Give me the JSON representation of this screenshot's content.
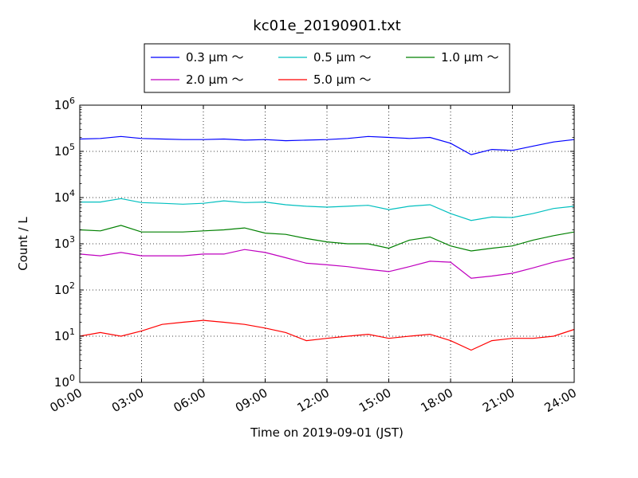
{
  "chart_data": {
    "type": "line",
    "title": "kc01e_20190901.txt",
    "xlabel": "Time on 2019-09-01 (JST)",
    "ylabel": "Count / L",
    "y_scale": "log",
    "ylim": [
      1,
      1000000
    ],
    "xlim": [
      "00:00",
      "24:00"
    ],
    "grid": true,
    "legend_placement": "top-center",
    "x_tick_labels": [
      "00:00",
      "03:00",
      "06:00",
      "09:00",
      "12:00",
      "15:00",
      "18:00",
      "21:00",
      "24:00"
    ],
    "y_tick_labels": [
      {
        "base": "10",
        "exp": "0"
      },
      {
        "base": "10",
        "exp": "1"
      },
      {
        "base": "10",
        "exp": "2"
      },
      {
        "base": "10",
        "exp": "3"
      },
      {
        "base": "10",
        "exp": "4"
      },
      {
        "base": "10",
        "exp": "5"
      },
      {
        "base": "10",
        "exp": "6"
      }
    ],
    "x_hours": [
      0,
      1,
      2,
      3,
      4,
      5,
      6,
      7,
      8,
      9,
      10,
      11,
      12,
      13,
      14,
      15,
      16,
      17,
      18,
      19,
      20,
      21,
      22,
      23,
      24
    ],
    "series": [
      {
        "name": "0.3 μm ～",
        "color": "#0000ff",
        "values": [
          185000,
          190000,
          210000,
          190000,
          185000,
          180000,
          180000,
          185000,
          175000,
          180000,
          170000,
          175000,
          180000,
          190000,
          210000,
          200000,
          190000,
          200000,
          150000,
          85000,
          110000,
          105000,
          130000,
          160000,
          180000
        ]
      },
      {
        "name": "0.5 μm ～",
        "color": "#00bfbf",
        "values": [
          8000,
          8000,
          9500,
          7800,
          7500,
          7200,
          7500,
          8500,
          7800,
          8000,
          7000,
          6500,
          6200,
          6500,
          6800,
          5500,
          6500,
          7000,
          4500,
          3200,
          3800,
          3700,
          4500,
          5800,
          6500
        ]
      },
      {
        "name": "1.0 μm ～",
        "color": "#008000",
        "values": [
          2000,
          1900,
          2500,
          1800,
          1800,
          1800,
          1900,
          2000,
          2200,
          1700,
          1600,
          1300,
          1100,
          1000,
          1000,
          800,
          1200,
          1400,
          900,
          700,
          800,
          900,
          1200,
          1500,
          1800
        ]
      },
      {
        "name": "2.0 μm ～",
        "color": "#bf00bf",
        "values": [
          600,
          550,
          650,
          550,
          550,
          550,
          600,
          600,
          750,
          650,
          500,
          380,
          350,
          320,
          280,
          250,
          320,
          420,
          400,
          180,
          200,
          230,
          300,
          400,
          500
        ]
      },
      {
        "name": "5.0 μm ～",
        "color": "#ff0000",
        "values": [
          10,
          12,
          10,
          13,
          18,
          20,
          22,
          20,
          18,
          15,
          12,
          8,
          9,
          10,
          11,
          9,
          10,
          11,
          8,
          5,
          8,
          9,
          9,
          10,
          14
        ]
      }
    ]
  }
}
